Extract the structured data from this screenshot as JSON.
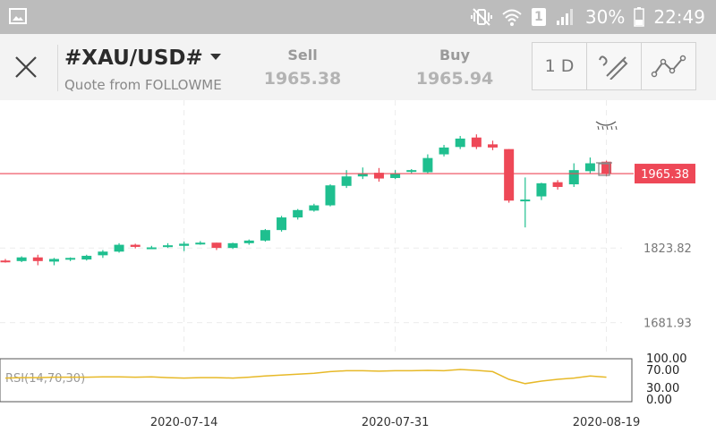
{
  "status_bar": {
    "battery": "30%",
    "time": "22:49",
    "sim_slot": "1"
  },
  "header": {
    "symbol": "#XAU/USD#",
    "quote_source": "Quote from FOLLOWME",
    "sell_label": "Sell",
    "sell_value": "1965.38",
    "buy_label": "Buy",
    "buy_value": "1965.94",
    "timeframe": "1 D"
  },
  "chart_data": {
    "type": "candlestick",
    "current_price_label": "1965.38",
    "y_tick_labels": [
      "1823.82",
      "1681.93"
    ],
    "ylim": [
      1620,
      2105
    ],
    "x_tick_labels": [
      "2020-07-14",
      "2020-07-31",
      "2020-08-19"
    ],
    "colors": {
      "up": "#1fbf8f",
      "down": "#ee4857",
      "price_line": "#ee4857",
      "rsi": "#e7b928"
    },
    "candles": [
      {
        "o": 1800,
        "h": 1803,
        "l": 1796,
        "c": 1797
      },
      {
        "o": 1799,
        "h": 1808,
        "l": 1797,
        "c": 1806
      },
      {
        "o": 1806,
        "h": 1811,
        "l": 1791,
        "c": 1799
      },
      {
        "o": 1798,
        "h": 1805,
        "l": 1791,
        "c": 1803
      },
      {
        "o": 1803,
        "h": 1806,
        "l": 1799,
        "c": 1805
      },
      {
        "o": 1802,
        "h": 1811,
        "l": 1800,
        "c": 1809
      },
      {
        "o": 1810,
        "h": 1820,
        "l": 1805,
        "c": 1817
      },
      {
        "o": 1817,
        "h": 1833,
        "l": 1815,
        "c": 1830
      },
      {
        "o": 1830,
        "h": 1832,
        "l": 1823,
        "c": 1826
      },
      {
        "o": 1825,
        "h": 1828,
        "l": 1822,
        "c": 1825
      },
      {
        "o": 1826,
        "h": 1833,
        "l": 1824,
        "c": 1829
      },
      {
        "o": 1828,
        "h": 1836,
        "l": 1818,
        "c": 1832
      },
      {
        "o": 1831,
        "h": 1837,
        "l": 1830,
        "c": 1834
      },
      {
        "o": 1834,
        "h": 1834,
        "l": 1820,
        "c": 1824
      },
      {
        "o": 1824,
        "h": 1834,
        "l": 1822,
        "c": 1833
      },
      {
        "o": 1833,
        "h": 1840,
        "l": 1830,
        "c": 1838
      },
      {
        "o": 1838,
        "h": 1860,
        "l": 1836,
        "c": 1858
      },
      {
        "o": 1858,
        "h": 1885,
        "l": 1855,
        "c": 1882
      },
      {
        "o": 1882,
        "h": 1898,
        "l": 1878,
        "c": 1896
      },
      {
        "o": 1895,
        "h": 1908,
        "l": 1893,
        "c": 1905
      },
      {
        "o": 1905,
        "h": 1945,
        "l": 1903,
        "c": 1943
      },
      {
        "o": 1942,
        "h": 1972,
        "l": 1938,
        "c": 1960
      },
      {
        "o": 1960,
        "h": 1977,
        "l": 1955,
        "c": 1966
      },
      {
        "o": 1967,
        "h": 1976,
        "l": 1950,
        "c": 1956
      },
      {
        "o": 1957,
        "h": 1972,
        "l": 1955,
        "c": 1966
      },
      {
        "o": 1970,
        "h": 1974,
        "l": 1965,
        "c": 1972
      },
      {
        "o": 1968,
        "h": 2002,
        "l": 1965,
        "c": 1995
      },
      {
        "o": 2002,
        "h": 2020,
        "l": 1998,
        "c": 2015
      },
      {
        "o": 2016,
        "h": 2037,
        "l": 2012,
        "c": 2032
      },
      {
        "o": 2034,
        "h": 2040,
        "l": 2012,
        "c": 2016
      },
      {
        "o": 2021,
        "h": 2028,
        "l": 2010,
        "c": 2015
      },
      {
        "o": 2012,
        "h": 2012,
        "l": 1910,
        "c": 1914
      },
      {
        "o": 1914,
        "h": 1958,
        "l": 1863,
        "c": 1916
      },
      {
        "o": 1922,
        "h": 1948,
        "l": 1915,
        "c": 1947
      },
      {
        "o": 1949,
        "h": 1953,
        "l": 1935,
        "c": 1940
      },
      {
        "o": 1945,
        "h": 1985,
        "l": 1940,
        "c": 1972
      },
      {
        "o": 1970,
        "h": 1996,
        "l": 1966,
        "c": 1985
      },
      {
        "o": 1988,
        "h": 1990,
        "l": 1960,
        "c": 1965
      }
    ],
    "rsi": {
      "label": "RSI(14,70,30)",
      "y_tick_labels": [
        "100.00",
        "70.00",
        "30.00",
        "0.00"
      ],
      "values": [
        55,
        56,
        56,
        57,
        57,
        57,
        58,
        58,
        57,
        58,
        56,
        55,
        56,
        56,
        55,
        57,
        60,
        62,
        64,
        66,
        70,
        72,
        72,
        71,
        72,
        72,
        73,
        72,
        75,
        73,
        70,
        52,
        42,
        48,
        52,
        55,
        60,
        57
      ]
    }
  }
}
